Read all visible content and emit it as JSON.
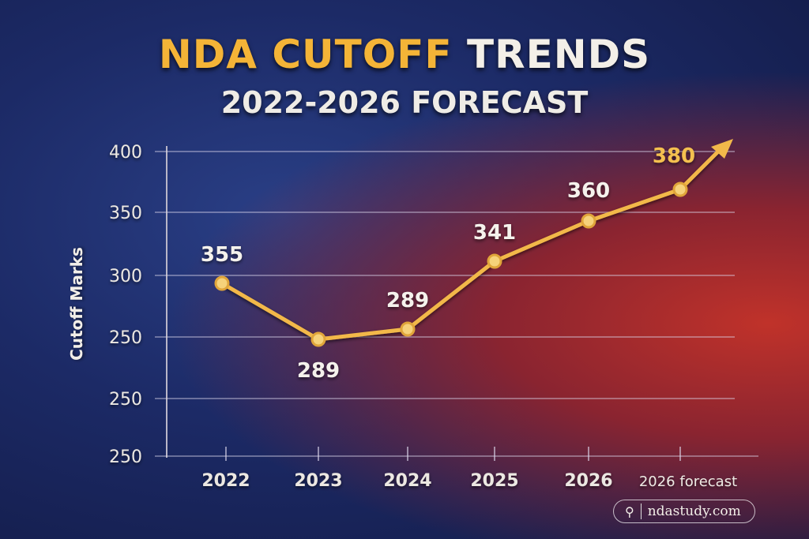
{
  "title": {
    "part1": "NDA CUTOFF",
    "part2": "TRENDS",
    "subtitle": "2022-2026 FORECAST"
  },
  "colors": {
    "line": "#f2b84a",
    "title_accent": "#f4b437",
    "background_left": "#1c2a66",
    "background_right": "#c0322a"
  },
  "chart_data": {
    "type": "line",
    "title": "NDA CUTOFF TRENDS 2022-2026 FORECAST",
    "ylabel": "Cutoff Marks",
    "xlabel": "",
    "y_tick_labels": [
      "400",
      "350",
      "300",
      "250",
      "250",
      "250"
    ],
    "categories": [
      "2022",
      "2023",
      "2024",
      "2025",
      "2026",
      "2026 forecast"
    ],
    "data_labels": [
      "355",
      "289",
      "289",
      "341",
      "360",
      "380"
    ],
    "values": [
      355,
      289,
      289,
      341,
      360,
      380
    ],
    "grid": true,
    "trend_arrow": true
  },
  "watermark": {
    "icon": "search-icon",
    "text": "ndastudy.com"
  }
}
